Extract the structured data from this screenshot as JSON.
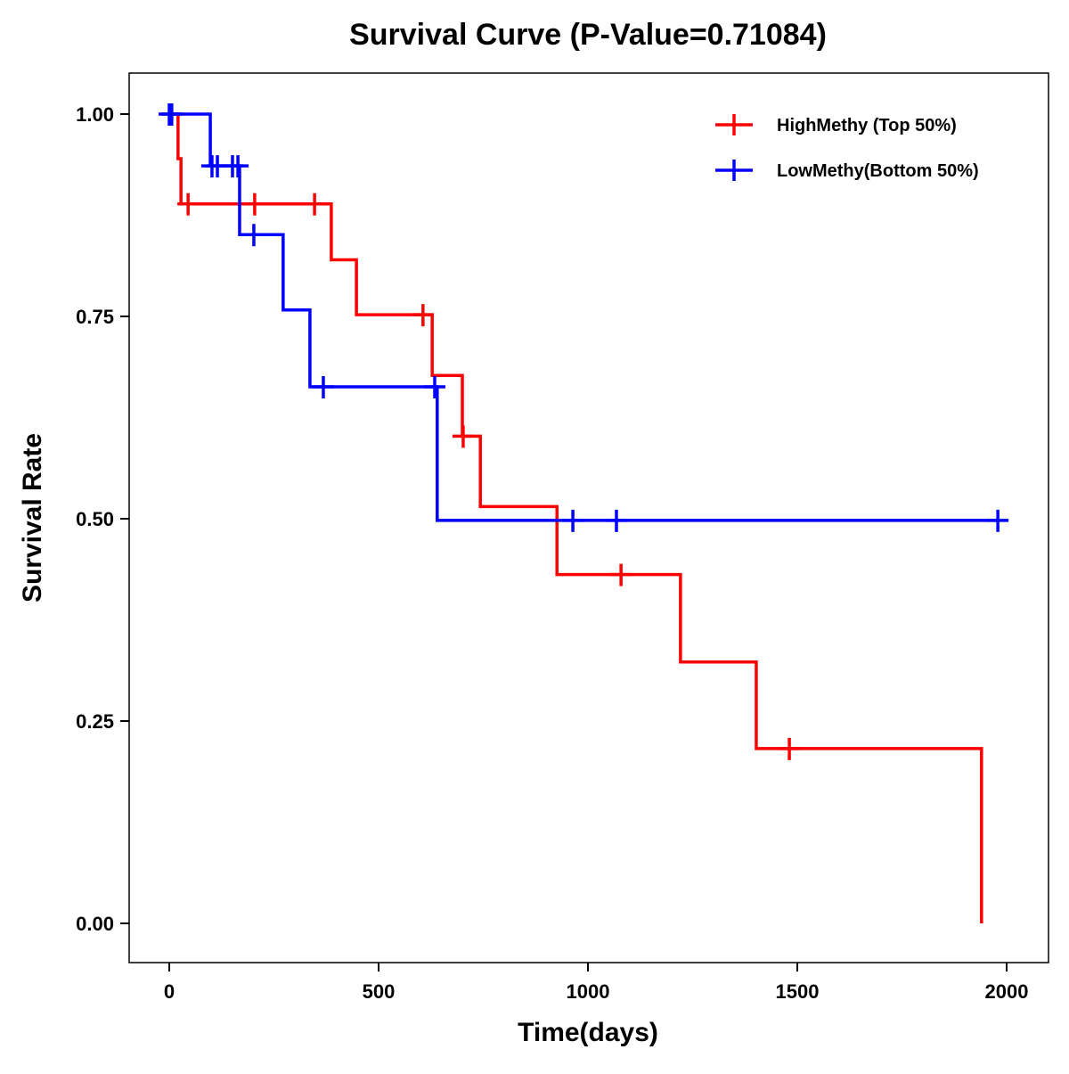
{
  "chart_data": {
    "type": "line",
    "subtype": "kaplan-meier step",
    "title": "Survival Curve (P-Value=0.71084)",
    "xlabel": "Time(days)",
    "ylabel": "Survival Rate",
    "xlim": [
      -90,
      2090
    ],
    "ylim": [
      -0.05,
      1.05
    ],
    "xticks": [
      0,
      500,
      1000,
      1500,
      2000
    ],
    "xtick_labels": [
      "0",
      "500",
      "1000",
      "1500",
      "2000"
    ],
    "yticks": [
      0,
      0.25,
      0.5,
      0.75,
      1.0
    ],
    "ytick_labels": [
      "0.00",
      "0.25",
      "0.50",
      "0.75",
      "1.00"
    ],
    "grid": false,
    "legend_position": "top-right",
    "series": [
      {
        "name": "HighMethy (Top 50%)",
        "color": "#ff0000",
        "steps": [
          [
            0,
            1.0
          ],
          [
            21,
            0.945
          ],
          [
            28,
            0.889
          ],
          [
            387,
            0.82
          ],
          [
            447,
            0.752
          ],
          [
            628,
            0.677
          ],
          [
            700,
            0.602
          ],
          [
            743,
            0.515
          ],
          [
            926,
            0.431
          ],
          [
            1221,
            0.323
          ],
          [
            1402,
            0.216
          ],
          [
            1940,
            0.0
          ]
        ],
        "end": 1940,
        "censored": [
          [
            45,
            0.889
          ],
          [
            204,
            0.889
          ],
          [
            347,
            0.889
          ],
          [
            606,
            0.752
          ],
          [
            702,
            0.602
          ],
          [
            1079,
            0.431
          ],
          [
            1481,
            0.216
          ]
        ]
      },
      {
        "name": "LowMethy(Bottom 50%)",
        "color": "#0000ff",
        "steps": [
          [
            0,
            1.0
          ],
          [
            98,
            0.936
          ],
          [
            168,
            0.851
          ],
          [
            272,
            0.758
          ],
          [
            336,
            0.663
          ],
          [
            640,
            0.498
          ]
        ],
        "end": 1979,
        "censored": [
          [
            0,
            1.0
          ],
          [
            6,
            1.0
          ],
          [
            102,
            0.936
          ],
          [
            115,
            0.936
          ],
          [
            151,
            0.936
          ],
          [
            164,
            0.936
          ],
          [
            202,
            0.851
          ],
          [
            368,
            0.663
          ],
          [
            634,
            0.663
          ],
          [
            964,
            0.498
          ],
          [
            1068,
            0.498
          ],
          [
            1979,
            0.498
          ]
        ]
      }
    ]
  }
}
